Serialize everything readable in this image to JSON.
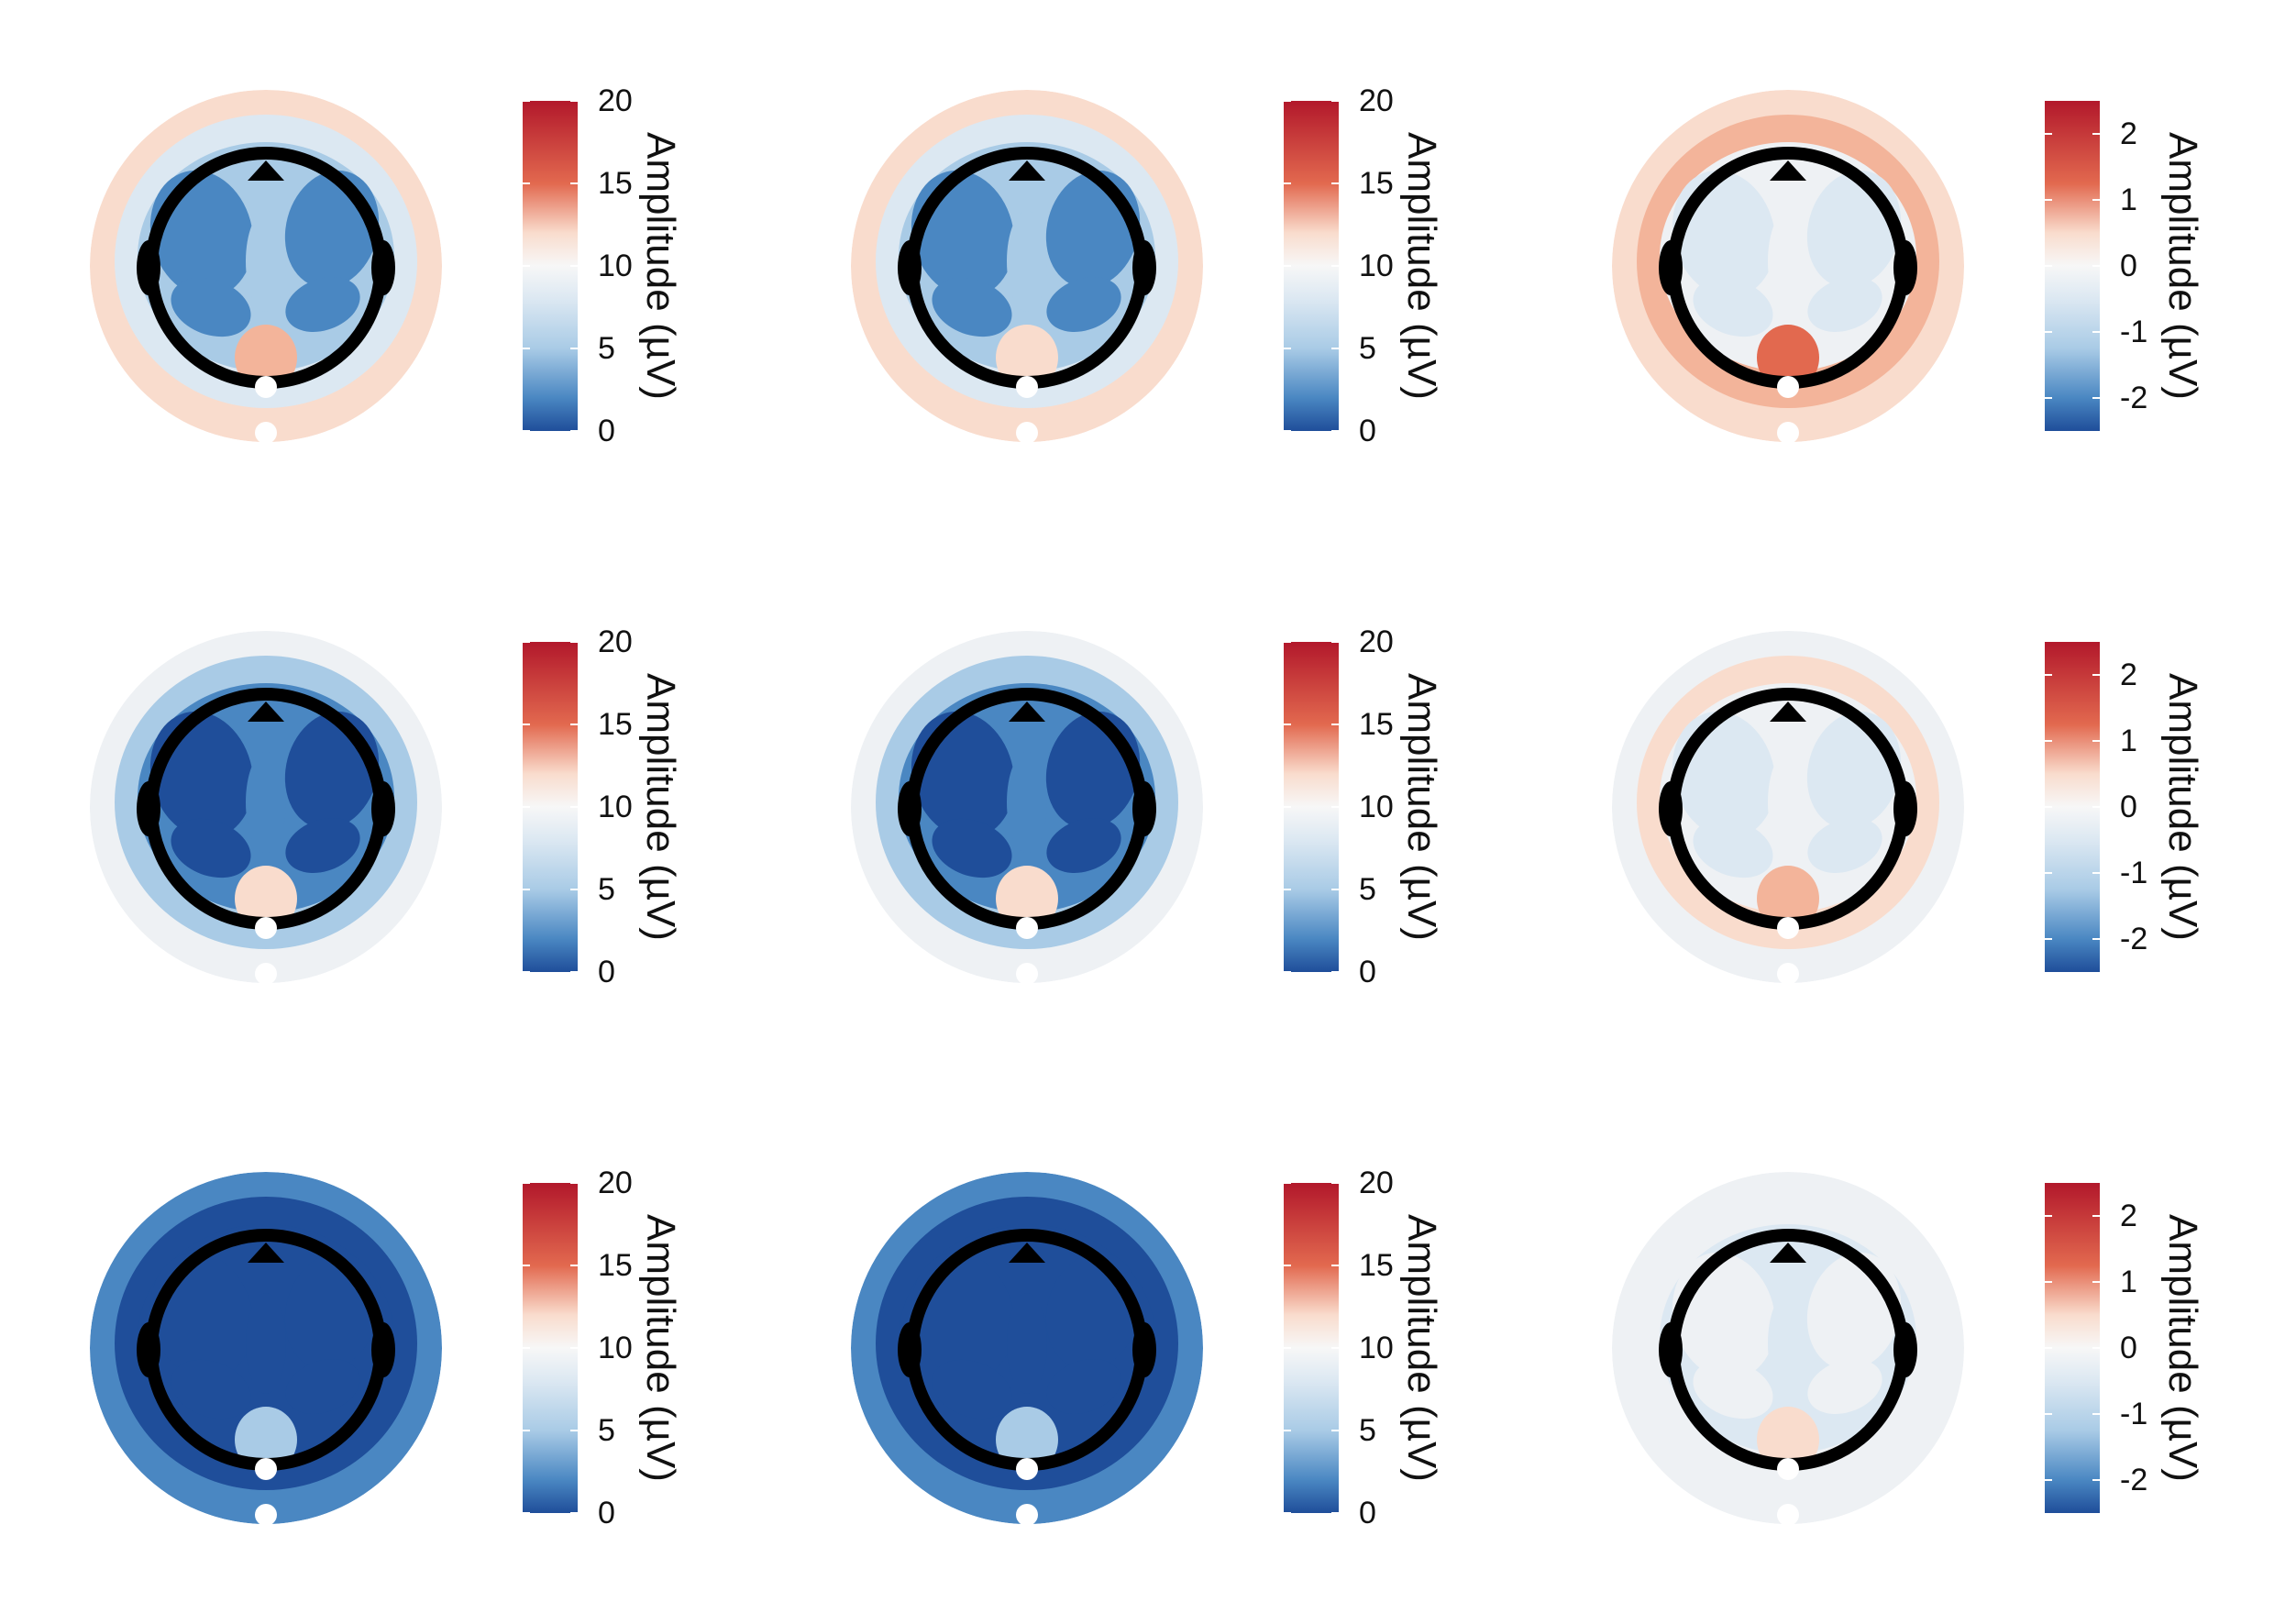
{
  "colors": {
    "deep_blue": "#1f4e9a",
    "mid_blue": "#4a87c2",
    "light_blue": "#a9cbe6",
    "pale_blue": "#dce8f2",
    "neutral": "#eef1f4",
    "pale_red": "#f9dccd",
    "light_red": "#f3b49a",
    "mid_red": "#e2694f",
    "deep_red": "#b2182b",
    "head_outline": "#000000",
    "electrode_marker": "#ffffff"
  },
  "colorbar_label": "Amplitude (µV)",
  "panels": [
    {
      "row": 1,
      "col": 1,
      "colormap": "RdBu",
      "scale_min": 0,
      "scale_max": 20,
      "tick_labels": [
        "20",
        "15",
        "10",
        "5",
        "0"
      ],
      "pattern": "light-blue-centre-red-rim",
      "axis_title": "Amplitude (µV)"
    },
    {
      "row": 1,
      "col": 2,
      "colormap": "RdBu",
      "scale_min": 0,
      "scale_max": 20,
      "tick_labels": [
        "20",
        "15",
        "10",
        "5",
        "0"
      ],
      "pattern": "light-blue-centre-pale-rim",
      "axis_title": "Amplitude (µV)"
    },
    {
      "row": 1,
      "col": 3,
      "colormap": "RdBu",
      "scale_min": -2.5,
      "scale_max": 2.5,
      "tick_labels": [
        "2",
        "1",
        "0",
        "-1",
        "-2"
      ],
      "pattern": "pale-red-occipital-hotspot",
      "axis_title": "Amplitude (µV)"
    },
    {
      "row": 2,
      "col": 1,
      "colormap": "RdBu",
      "scale_min": 0,
      "scale_max": 20,
      "tick_labels": [
        "20",
        "15",
        "10",
        "5",
        "0"
      ],
      "pattern": "mid-blue-centre",
      "axis_title": "Amplitude (µV)"
    },
    {
      "row": 2,
      "col": 2,
      "colormap": "RdBu",
      "scale_min": 0,
      "scale_max": 20,
      "tick_labels": [
        "20",
        "15",
        "10",
        "5",
        "0"
      ],
      "pattern": "mid-blue-centre",
      "axis_title": "Amplitude (µV)"
    },
    {
      "row": 2,
      "col": 3,
      "colormap": "RdBu",
      "scale_min": -2.5,
      "scale_max": 2.5,
      "tick_labels": [
        "2",
        "1",
        "0",
        "-1",
        "-2"
      ],
      "pattern": "neutral-faint-red",
      "axis_title": "Amplitude (µV)"
    },
    {
      "row": 3,
      "col": 1,
      "colormap": "RdBu",
      "scale_min": 0,
      "scale_max": 20,
      "tick_labels": [
        "20",
        "15",
        "10",
        "5",
        "0"
      ],
      "pattern": "deep-blue",
      "axis_title": "Amplitude (µV)"
    },
    {
      "row": 3,
      "col": 2,
      "colormap": "RdBu",
      "scale_min": 0,
      "scale_max": 20,
      "tick_labels": [
        "20",
        "15",
        "10",
        "5",
        "0"
      ],
      "pattern": "deep-blue",
      "axis_title": "Amplitude (µV)"
    },
    {
      "row": 3,
      "col": 3,
      "colormap": "RdBu",
      "scale_min": -2.5,
      "scale_max": 2.5,
      "tick_labels": [
        "2",
        "1",
        "0",
        "-1",
        "-2"
      ],
      "pattern": "neutral",
      "axis_title": "Amplitude (µV)"
    }
  ]
}
